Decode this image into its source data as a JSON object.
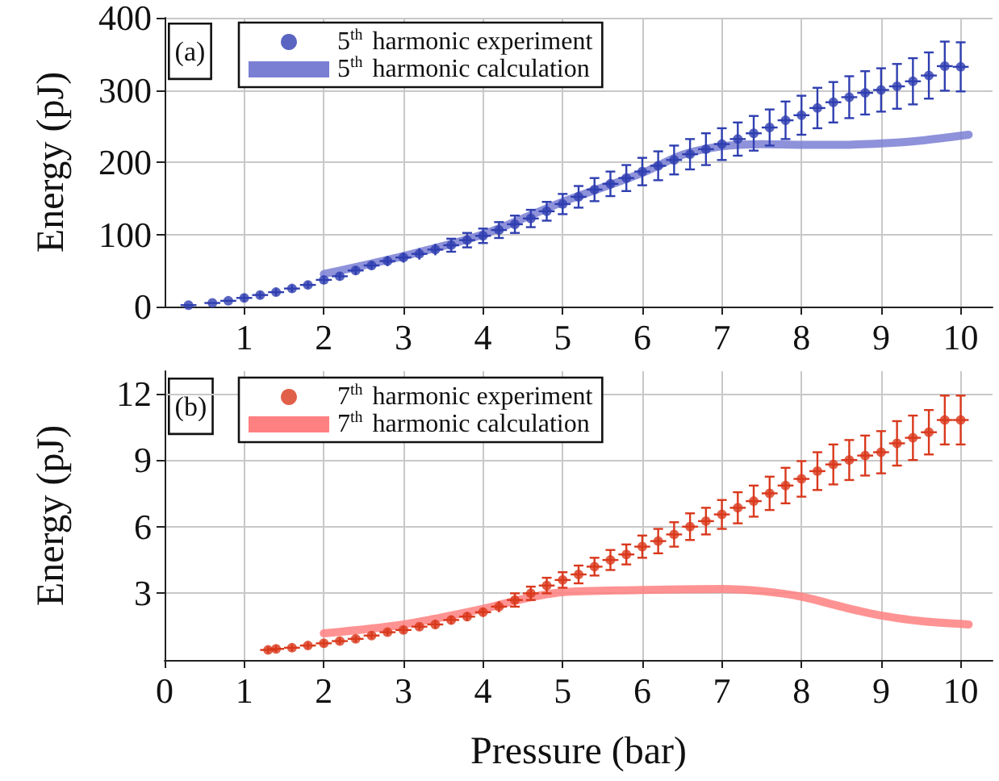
{
  "chart_data": [
    {
      "type": "scatter",
      "ylabel": "Energy (pJ)",
      "annotations": [
        "(a)"
      ],
      "xlim": [
        0,
        10.4
      ],
      "xticks": [
        1,
        2,
        3,
        4,
        5,
        6,
        7,
        8,
        9,
        10
      ],
      "ylim": [
        0,
        400
      ],
      "yticks": [
        0,
        100,
        200,
        300,
        400
      ],
      "grid": true,
      "legend": "top left",
      "line_style": "solid",
      "series": [
        {
          "name": "5$^{th}$ harmonic experiment",
          "marker": "circle",
          "color": "#2f3fb0",
          "x": [
            0.3,
            0.6,
            0.8,
            1,
            1.2,
            1.4,
            1.6,
            1.8,
            2,
            2.2,
            2.4,
            2.6,
            2.8,
            3,
            3.2,
            3.4,
            3.6,
            3.8,
            4,
            4.2,
            4.4,
            4.6,
            4.8,
            5,
            5.2,
            5.4,
            5.6,
            5.8,
            6,
            6.2,
            6.4,
            6.6,
            6.8,
            7,
            7.2,
            7.4,
            7.6,
            7.8,
            8,
            8.2,
            8.4,
            8.6,
            8.8,
            9,
            9.2,
            9.4,
            9.6,
            9.8,
            10
          ],
          "values": [
            2,
            5,
            8,
            12,
            16,
            20,
            25,
            30,
            37,
            42,
            50,
            57,
            63,
            68,
            73,
            79,
            85,
            92,
            98,
            106,
            114,
            122,
            132,
            142,
            152,
            162,
            170,
            178,
            187,
            195,
            203,
            211,
            218,
            225,
            232,
            240,
            248,
            258,
            265,
            275,
            283,
            290,
            296,
            300,
            305,
            312,
            320,
            333,
            332
          ],
          "errors": [
            null,
            null,
            null,
            5,
            5,
            5,
            5,
            5,
            5,
            5,
            6,
            6,
            7,
            7,
            8,
            8,
            9,
            10,
            10,
            11,
            12,
            12,
            13,
            14,
            15,
            16,
            17,
            18,
            19,
            20,
            20,
            21,
            22,
            22,
            23,
            24,
            25,
            26,
            27,
            28,
            28,
            29,
            30,
            30,
            31,
            32,
            32,
            34,
            34
          ],
          "xerrors": [
            0.1,
            0.1,
            0.1,
            0.1,
            0.1,
            0.1,
            0.1,
            0.1,
            0.1,
            0.1,
            0.1,
            0.1,
            0.1,
            0.1,
            0.1,
            0.1,
            0.1,
            0.1,
            0.1,
            0.1,
            0.1,
            0.1,
            0.1,
            0.1,
            0.1,
            0.1,
            0.1,
            0.1,
            0.1,
            0.1,
            0.1,
            0.1,
            0.1,
            0.1,
            0.1,
            0.1,
            0.1,
            0.1,
            0.1,
            0.1,
            0.1,
            0.1,
            0.1,
            0.1,
            0.1,
            0.1,
            0.1,
            0.1,
            0.1
          ]
        },
        {
          "name": "5$^{th}$ harmonic calculation",
          "type": "line",
          "marker": "none",
          "color": "#7a7fd4",
          "x": [
            2,
            3,
            4,
            5,
            6,
            6.5,
            7,
            7.5,
            8,
            8.5,
            9,
            9.5,
            10.1
          ],
          "values": [
            45,
            70,
            100,
            145,
            185,
            210,
            222,
            225,
            224,
            224,
            226,
            230,
            238
          ]
        }
      ]
    },
    {
      "type": "scatter",
      "xlabel": "Pressure (bar)",
      "ylabel": "Energy (pJ)",
      "annotations": [
        "(b)"
      ],
      "xlim": [
        0,
        10.4
      ],
      "xticks": [
        0,
        1,
        2,
        3,
        4,
        5,
        6,
        7,
        8,
        9,
        10
      ],
      "ylim": [
        0,
        13
      ],
      "yticks": [
        3,
        6,
        9,
        12
      ],
      "grid": true,
      "legend": "top left",
      "line_style": "solid",
      "series": [
        {
          "name": "7$^{th}$ harmonic experiment",
          "marker": "circle",
          "color": "#d9381c",
          "x": [
            1.3,
            1.4,
            1.6,
            1.8,
            2,
            2.2,
            2.4,
            2.6,
            2.8,
            3,
            3.2,
            3.4,
            3.6,
            3.8,
            4,
            4.2,
            4.4,
            4.6,
            4.8,
            5,
            5.2,
            5.4,
            5.6,
            5.8,
            6,
            6.2,
            6.4,
            6.6,
            6.8,
            7,
            7.2,
            7.4,
            7.6,
            7.8,
            8,
            8.2,
            8.4,
            8.6,
            8.8,
            9,
            9.2,
            9.4,
            9.6,
            9.8,
            10
          ],
          "values": [
            0.45,
            0.5,
            0.55,
            0.65,
            0.75,
            0.85,
            0.95,
            1.1,
            1.25,
            1.35,
            1.5,
            1.6,
            1.8,
            1.95,
            2.15,
            2.4,
            2.7,
            3,
            3.35,
            3.6,
            3.85,
            4.2,
            4.5,
            4.75,
            5.1,
            5.35,
            5.65,
            6,
            6.25,
            6.55,
            6.85,
            7.15,
            7.5,
            7.85,
            8.15,
            8.5,
            8.8,
            9,
            9.2,
            9.35,
            9.75,
            10,
            10.25,
            10.8,
            10.8
          ],
          "errors": [
            0.15,
            0.15,
            0.15,
            0.15,
            0.15,
            0.15,
            0.15,
            0.15,
            0.15,
            0.15,
            0.15,
            0.2,
            0.2,
            0.2,
            0.2,
            0.25,
            0.3,
            0.3,
            0.35,
            0.35,
            0.4,
            0.4,
            0.45,
            0.45,
            0.5,
            0.55,
            0.55,
            0.6,
            0.6,
            0.65,
            0.7,
            0.7,
            0.75,
            0.8,
            0.8,
            0.85,
            0.9,
            0.9,
            0.9,
            0.95,
            1,
            1,
            1,
            1.1,
            1.1
          ],
          "xerrors": [
            0.1,
            0.1,
            0.1,
            0.1,
            0.1,
            0.1,
            0.1,
            0.1,
            0.1,
            0.1,
            0.1,
            0.1,
            0.1,
            0.1,
            0.1,
            0.1,
            0.1,
            0.1,
            0.1,
            0.1,
            0.1,
            0.1,
            0.1,
            0.1,
            0.1,
            0.1,
            0.1,
            0.1,
            0.1,
            0.1,
            0.1,
            0.1,
            0.1,
            0.1,
            0.1,
            0.1,
            0.1,
            0.1,
            0.1,
            0.1,
            0.1,
            0.1,
            0.1,
            0.1,
            0.1
          ]
        },
        {
          "name": "7$^{th}$ harmonic calculation",
          "type": "line",
          "marker": "none",
          "color": "#ff8080",
          "x": [
            2,
            3,
            4,
            4.5,
            5,
            6,
            7,
            7.5,
            8,
            8.5,
            9,
            9.5,
            10.1
          ],
          "values": [
            1.2,
            1.6,
            2.3,
            2.75,
            3.05,
            3.15,
            3.2,
            3.1,
            2.85,
            2.4,
            2,
            1.75,
            1.6
          ]
        }
      ]
    }
  ]
}
